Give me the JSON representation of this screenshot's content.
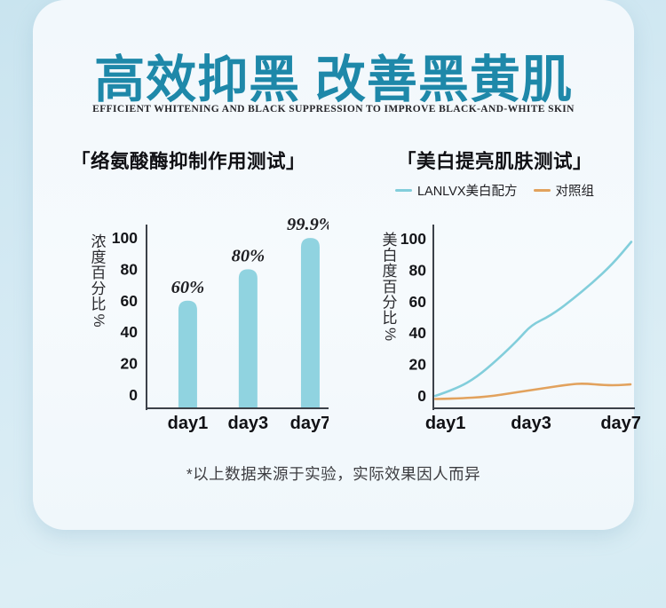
{
  "page": {
    "title": "高效抑黑 改善黑黄肌",
    "subtitle": "EFFICIENT WHITENING AND BLACK SUPPRESSION TO IMPROVE BLACK-AND-WHITE SKIN",
    "footnote": "*以上数据来源于实验，实际效果因人而异"
  },
  "colors": {
    "title_teal": "#1e88a9",
    "bar_fill": "#90d3e0",
    "line_main": "#82cedb",
    "line_control": "#e2a25d",
    "axis": "#3c4149",
    "tick_text": "#15161a",
    "value_text": "#1f1f23",
    "bg_outer": "#cfe7f1",
    "panel": "#f4f9fd"
  },
  "left_chart": {
    "heading": "「络氨酸酶抑制作用测试」"
  },
  "right_chart": {
    "heading": "「美白提亮肌肤测试」",
    "legend": [
      {
        "label": "LANLVX美白配方",
        "color": "#82cedb"
      },
      {
        "label": "对照组",
        "color": "#e2a25d"
      }
    ]
  },
  "chart_data": [
    {
      "type": "bar",
      "title": "络氨酸酶抑制作用测试",
      "categories": [
        "day1",
        "day3",
        "day7"
      ],
      "values": [
        60,
        80,
        99.9
      ],
      "value_labels": [
        "60%",
        "80%",
        "99.9%"
      ],
      "xlabel": "",
      "ylabel": "浓度百分比%",
      "yticks": [
        0,
        20,
        40,
        60,
        80,
        100
      ],
      "ylim": [
        0,
        100
      ],
      "grid": false,
      "bar_color": "#90d3e0"
    },
    {
      "type": "line",
      "title": "美白提亮肌肤测试",
      "xlabel": "",
      "ylabel": "美白度百分比%",
      "yticks": [
        0,
        20,
        40,
        60,
        80,
        100
      ],
      "ylim": [
        0,
        100
      ],
      "grid": false,
      "legend_position": "top",
      "xticks": [
        {
          "label": "day1",
          "pos": 0.06
        },
        {
          "label": "day3",
          "pos": 0.485
        },
        {
          "label": "day7",
          "pos": 0.93
        }
      ],
      "series": [
        {
          "name": "LANLVX美白配方",
          "color": "#82cedb",
          "points": [
            [
              0.01,
              0
            ],
            [
              0.115,
              4.5
            ],
            [
              0.216,
              12
            ],
            [
              0.317,
              23
            ],
            [
              0.423,
              36
            ],
            [
              0.485,
              45
            ],
            [
              0.581,
              51
            ],
            [
              0.687,
              61
            ],
            [
              0.789,
              72
            ],
            [
              0.89,
              84
            ],
            [
              0.982,
              98
            ]
          ]
        },
        {
          "name": "对照组",
          "color": "#e2a25d",
          "points": [
            [
              0.01,
              -2
            ],
            [
              0.119,
              -1.7
            ],
            [
              0.269,
              -0.6
            ],
            [
              0.414,
              2.3
            ],
            [
              0.559,
              5.1
            ],
            [
              0.678,
              7.3
            ],
            [
              0.744,
              7.9
            ],
            [
              0.854,
              6.8
            ],
            [
              0.92,
              6.8
            ],
            [
              0.978,
              7.3
            ]
          ]
        }
      ]
    }
  ]
}
